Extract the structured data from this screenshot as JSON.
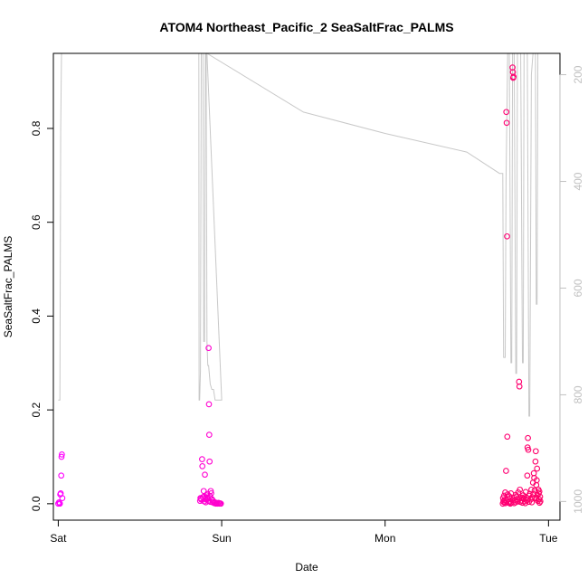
{
  "chart_data": {
    "type": "scatter",
    "title": "ATOM4 Northeast_Pacific_2 SeaSaltFrac_PALMS",
    "xlabel": "Date",
    "ylabel": "SeaSaltFrac_PALMS",
    "xlim": [
      -0.03,
      3.07
    ],
    "ylim": [
      -0.035,
      0.96
    ],
    "x_ticks": [
      {
        "value": 0,
        "label": "Sat"
      },
      {
        "value": 1,
        "label": "Sun"
      },
      {
        "value": 2,
        "label": "Mon"
      },
      {
        "value": 3,
        "label": "Tue"
      }
    ],
    "y_ticks": [
      {
        "value": 0.0,
        "label": "0.0"
      },
      {
        "value": 0.2,
        "label": "0.2"
      },
      {
        "value": 0.4,
        "label": "0.4"
      },
      {
        "value": 0.6,
        "label": "0.6"
      },
      {
        "value": 0.8,
        "label": "0.8"
      }
    ],
    "secondary_axis": {
      "side": "right",
      "reversed": true,
      "range": [
        1035,
        160
      ],
      "ticks": [
        {
          "value": 200,
          "label": "200"
        },
        {
          "value": 400,
          "label": "400"
        },
        {
          "value": 600,
          "label": "600"
        },
        {
          "value": 800,
          "label": "800"
        },
        {
          "value": 1000,
          "label": "1000"
        }
      ],
      "color": "#c0c0c0"
    },
    "series": [
      {
        "kind": "points",
        "color_start": "#ff00ff",
        "color_end": "#ff0066",
        "points": [
          [
            0.0,
            0.0
          ],
          [
            0.005,
            0.003
          ],
          [
            0.01,
            0.0
          ],
          [
            0.012,
            0.02
          ],
          [
            0.015,
            0.022
          ],
          [
            0.018,
            0.06
          ],
          [
            0.02,
            0.1
          ],
          [
            0.022,
            0.105
          ],
          [
            0.025,
            0.012
          ],
          [
            0.008,
            0.001
          ],
          [
            0.87,
            0.012
          ],
          [
            0.875,
            0.009
          ],
          [
            0.88,
            0.095
          ],
          [
            0.882,
            0.08
          ],
          [
            0.885,
            0.014
          ],
          [
            0.89,
            0.027
          ],
          [
            0.893,
            0.005
          ],
          [
            0.897,
            0.062
          ],
          [
            0.9,
            0.012
          ],
          [
            0.903,
            0.003
          ],
          [
            0.907,
            0.018
          ],
          [
            0.91,
            0.013
          ],
          [
            0.912,
            0.021
          ],
          [
            0.915,
            0.011
          ],
          [
            0.918,
            0.006
          ],
          [
            0.92,
            0.332
          ],
          [
            0.922,
            0.212
          ],
          [
            0.924,
            0.147
          ],
          [
            0.926,
            0.09
          ],
          [
            0.928,
            0.016
          ],
          [
            0.93,
            0.004
          ],
          [
            0.933,
            0.027
          ],
          [
            0.936,
            0.022
          ],
          [
            0.94,
            0.01
          ],
          [
            0.943,
            0.003
          ],
          [
            0.946,
            0.007
          ],
          [
            0.95,
            0.004
          ],
          [
            0.955,
            0.001
          ],
          [
            0.96,
            0.003
          ],
          [
            0.965,
            0.0
          ],
          [
            0.97,
            0.001
          ],
          [
            0.975,
            0.0
          ],
          [
            0.98,
            0.002
          ],
          [
            0.985,
            0.0
          ],
          [
            0.99,
            0.001
          ],
          [
            0.995,
            0.0
          ],
          [
            0.868,
            0.006
          ],
          [
            0.872,
            0.011
          ],
          [
            0.895,
            0.016
          ],
          [
            0.905,
            0.009
          ],
          [
            2.72,
            0.0
          ],
          [
            2.722,
            0.012
          ],
          [
            2.724,
            0.005
          ],
          [
            2.726,
            0.003
          ],
          [
            2.728,
            0.017
          ],
          [
            2.73,
            0.008
          ],
          [
            2.733,
            0.003
          ],
          [
            2.736,
            0.001
          ],
          [
            2.74,
            0.07
          ],
          [
            2.742,
            0.835
          ],
          [
            2.744,
            0.812
          ],
          [
            2.746,
            0.57
          ],
          [
            2.748,
            0.143
          ],
          [
            2.75,
            0.02
          ],
          [
            2.753,
            0.01
          ],
          [
            2.756,
            0.003
          ],
          [
            2.76,
            0.016
          ],
          [
            2.763,
            0.005
          ],
          [
            2.766,
            0.0
          ],
          [
            2.77,
            0.022
          ],
          [
            2.773,
            0.002
          ],
          [
            2.776,
            0.008
          ],
          [
            2.78,
            0.93
          ],
          [
            2.782,
            0.92
          ],
          [
            2.784,
            0.908
          ],
          [
            2.786,
            0.91
          ],
          [
            2.79,
            0.013
          ],
          [
            2.795,
            0.007
          ],
          [
            2.8,
            0.003
          ],
          [
            2.805,
            0.016
          ],
          [
            2.81,
            0.005
          ],
          [
            2.815,
            0.024
          ],
          [
            2.82,
            0.26
          ],
          [
            2.822,
            0.25
          ],
          [
            2.825,
            0.03
          ],
          [
            2.83,
            0.012
          ],
          [
            2.835,
            0.007
          ],
          [
            2.84,
            0.002
          ],
          [
            2.845,
            0.018
          ],
          [
            2.85,
            0.011
          ],
          [
            2.855,
            0.005
          ],
          [
            2.86,
            0.025
          ],
          [
            2.865,
            0.013
          ],
          [
            2.87,
            0.06
          ],
          [
            2.872,
            0.12
          ],
          [
            2.874,
            0.14
          ],
          [
            2.876,
            0.115
          ],
          [
            2.88,
            0.004
          ],
          [
            2.885,
            0.021
          ],
          [
            2.89,
            0.009
          ],
          [
            2.895,
            0.03
          ],
          [
            2.9,
            0.014
          ],
          [
            2.905,
            0.045
          ],
          [
            2.91,
            0.065
          ],
          [
            2.912,
            0.055
          ],
          [
            2.915,
            0.028
          ],
          [
            2.918,
            0.012
          ],
          [
            2.92,
            0.09
          ],
          [
            2.922,
            0.112
          ],
          [
            2.925,
            0.04
          ],
          [
            2.928,
            0.05
          ],
          [
            2.93,
            0.075
          ],
          [
            2.932,
            0.018
          ],
          [
            2.935,
            0.006
          ],
          [
            2.938,
            0.03
          ],
          [
            2.94,
            0.022
          ],
          [
            2.942,
            0.01
          ],
          [
            2.945,
            0.002
          ],
          [
            2.948,
            0.015
          ],
          [
            2.95,
            0.005
          ],
          [
            2.735,
            0.024
          ],
          [
            2.758,
            0.002
          ],
          [
            2.768,
            0.011
          ],
          [
            2.79,
            0.001
          ],
          [
            2.8,
            0.019
          ],
          [
            2.812,
            0.009
          ],
          [
            2.826,
            0.004
          ],
          [
            2.842,
            0.013
          ],
          [
            2.858,
            0.001
          ],
          [
            2.868,
            0.008
          ],
          [
            2.882,
            0.017
          ],
          [
            2.898,
            0.003
          ],
          [
            2.908,
            0.021
          ],
          [
            2.926,
            0.011
          ],
          [
            2.944,
            0.026
          ]
        ]
      },
      {
        "kind": "line",
        "axis": "secondary",
        "color": "#c8c8c8",
        "points": [
          [
            0.0,
            810
          ],
          [
            0.01,
            810
          ],
          [
            0.015,
            300
          ],
          [
            0.02,
            160
          ],
          [
            0.1,
            160
          ],
          [
            0.3,
            160
          ],
          [
            0.6,
            160
          ],
          [
            0.8,
            160
          ],
          [
            0.86,
            160
          ],
          [
            0.862,
            810
          ],
          [
            0.865,
            810
          ],
          [
            0.87,
            755
          ],
          [
            0.875,
            160
          ],
          [
            0.885,
            160
          ],
          [
            0.89,
            700
          ],
          [
            0.895,
            700
          ],
          [
            0.9,
            160
          ],
          [
            0.905,
            160
          ],
          [
            0.91,
            700
          ],
          [
            0.915,
            745
          ],
          [
            0.92,
            745
          ],
          [
            0.93,
            780
          ],
          [
            0.94,
            790
          ],
          [
            0.95,
            790
          ],
          [
            0.96,
            810
          ],
          [
            0.97,
            810
          ],
          [
            0.98,
            810
          ],
          [
            0.99,
            810
          ],
          [
            1.0,
            810
          ],
          [
            0.91,
            160
          ],
          [
            1.5,
            270
          ],
          [
            2.0,
            310
          ],
          [
            2.5,
            345
          ],
          [
            2.7,
            385
          ],
          [
            2.72,
            385
          ],
          [
            2.725,
            730
          ],
          [
            2.735,
            730
          ],
          [
            2.74,
            400
          ],
          [
            2.75,
            160
          ],
          [
            2.76,
            160
          ],
          [
            2.77,
            740
          ],
          [
            2.775,
            740
          ],
          [
            2.78,
            160
          ],
          [
            2.79,
            160
          ],
          [
            2.8,
            760
          ],
          [
            2.805,
            760
          ],
          [
            2.81,
            160
          ],
          [
            2.83,
            160
          ],
          [
            2.84,
            740
          ],
          [
            2.845,
            740
          ],
          [
            2.85,
            160
          ],
          [
            2.87,
            160
          ],
          [
            2.88,
            840
          ],
          [
            2.885,
            840
          ],
          [
            2.895,
            200
          ],
          [
            2.9,
            180
          ],
          [
            2.905,
            160
          ],
          [
            2.92,
            160
          ],
          [
            2.925,
            630
          ],
          [
            2.93,
            630
          ],
          [
            2.935,
            160
          ],
          [
            2.95,
            160
          ]
        ]
      }
    ]
  }
}
